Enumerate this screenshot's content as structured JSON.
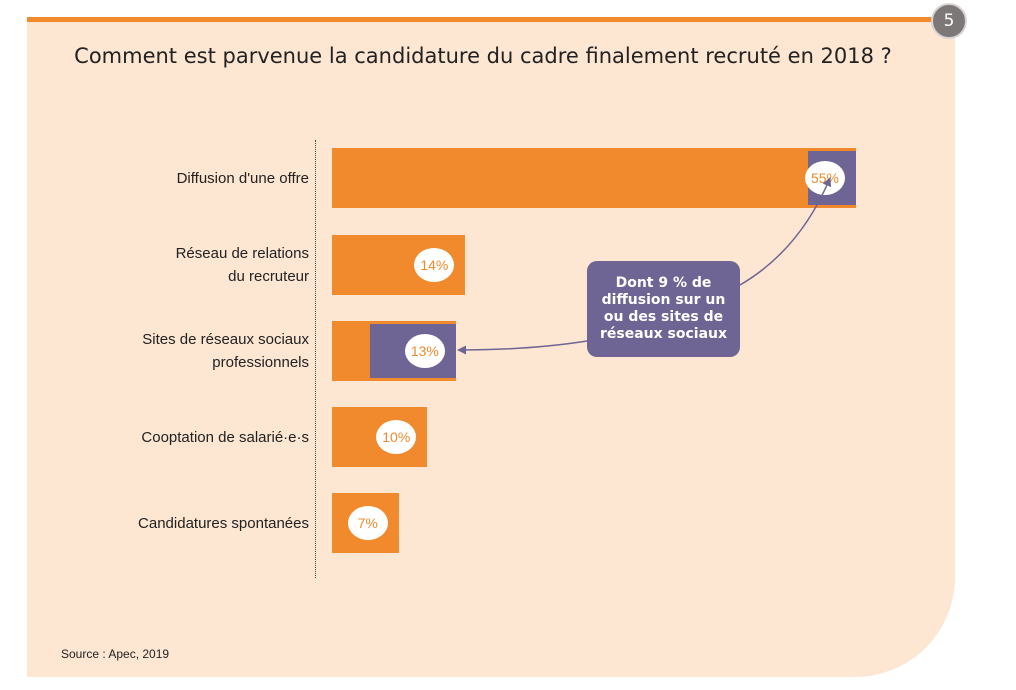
{
  "page_number": "5",
  "source": "Source : Apec, 2019",
  "callout_lines": [
    "Dont 9 % de",
    "diffusion sur un",
    "ou des sites de",
    "réseaux sociaux"
  ],
  "colors": {
    "bar": "#f08a2c",
    "inset": "#6f6594",
    "background": "#fde6d2"
  },
  "chart_data": {
    "type": "bar",
    "orientation": "horizontal",
    "title": "Comment est parvenue la candidature du cadre finalement recruté en 2018 ?",
    "xlabel": "",
    "ylabel": "",
    "xlim": [
      0,
      55
    ],
    "categories": [
      {
        "lines": [
          "Diffusion d'une offre"
        ],
        "value": 55,
        "label": "55%"
      },
      {
        "lines": [
          "Réseau de relations",
          "du recruteur"
        ],
        "value": 14,
        "label": "14%"
      },
      {
        "lines": [
          "Sites de réseaux sociaux",
          "professionnels"
        ],
        "value": 13,
        "label": "13%"
      },
      {
        "lines": [
          "Cooptation de salarié·e·s"
        ],
        "value": 10,
        "label": "10%"
      },
      {
        "lines": [
          "Candidatures spontanées"
        ],
        "value": 7,
        "label": "7%"
      }
    ],
    "insets": [
      {
        "category_index": 0,
        "value": 5
      },
      {
        "category_index": 2,
        "value": 9
      }
    ],
    "annotations": [
      {
        "text_ref": "callout_lines",
        "points_to": [
          0,
          2
        ]
      }
    ]
  }
}
